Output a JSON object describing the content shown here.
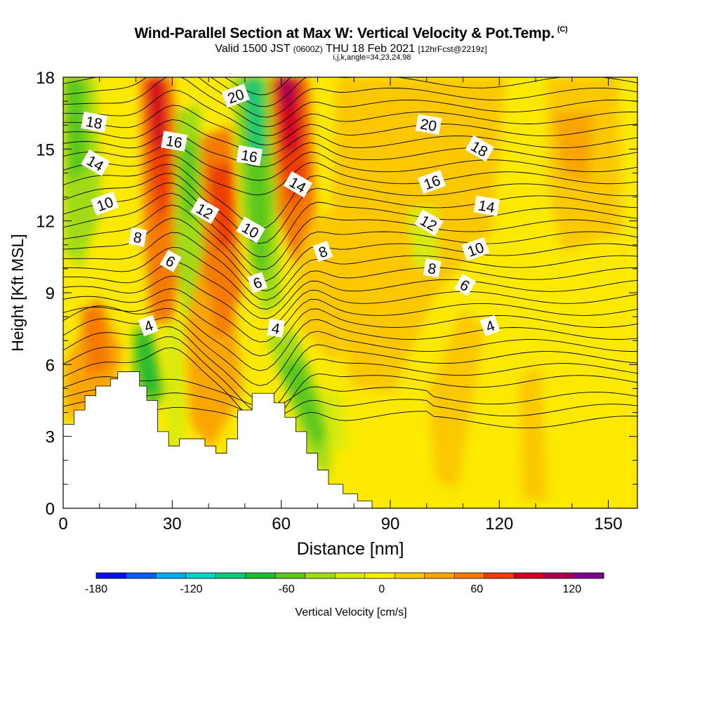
{
  "header": {
    "title": "Wind-Parallel Section at Max W: Vertical Velocity & Pot.Temp.",
    "copyright": "(C)",
    "valid_main": "Valid 1500 JST",
    "valid_utc": "(0600Z)",
    "valid_date": "THU 18 Feb 2021",
    "forecast": "[12hrFcst@2219z]",
    "ijk": "i,j,k,angle=34,23,24,98"
  },
  "chart_data": {
    "type": "heatmap",
    "xlabel": "Distance [nm]",
    "ylabel": "Height [Kft MSL]",
    "xlim": [
      0,
      158
    ],
    "ylim": [
      0,
      18
    ],
    "x_ticks": [
      0,
      30,
      60,
      90,
      120,
      150
    ],
    "y_ticks": [
      0,
      3,
      6,
      9,
      12,
      15,
      18
    ],
    "colorbar": {
      "label": "Vertical Velocity [cm/s]",
      "ticks": [
        -180,
        -120,
        -60,
        0,
        60,
        120
      ],
      "levels": [
        -180,
        -160,
        -140,
        -120,
        -100,
        -80,
        -60,
        -40,
        -20,
        0,
        20,
        40,
        60,
        80,
        100,
        120,
        140
      ],
      "colors": [
        "#0a10e6",
        "#0a5ef5",
        "#00aaf5",
        "#00d2c8",
        "#10c878",
        "#1eba32",
        "#5ac81e",
        "#a0dc14",
        "#d7eb0a",
        "#fbe900",
        "#fbc800",
        "#f9a600",
        "#f57a00",
        "#ee3c00",
        "#d10020",
        "#aa0050",
        "#7a0090"
      ]
    },
    "theta_contours": {
      "labels": [
        "4",
        "6",
        "8",
        "10",
        "12",
        "14",
        "16",
        "18",
        "20"
      ],
      "label_marks": [
        {
          "text": "18",
          "x": 8.5,
          "y": 16.1
        },
        {
          "text": "14",
          "x": 8.8,
          "y": 14.4
        },
        {
          "text": "10",
          "x": 11.5,
          "y": 12.7
        },
        {
          "text": "8",
          "x": 20.5,
          "y": 11.3
        },
        {
          "text": "6",
          "x": 29.5,
          "y": 10.3
        },
        {
          "text": "4",
          "x": 23.5,
          "y": 7.6
        },
        {
          "text": "16",
          "x": 30.5,
          "y": 15.3
        },
        {
          "text": "12",
          "x": 38.9,
          "y": 12.4
        },
        {
          "text": "20",
          "x": 47.5,
          "y": 17.2
        },
        {
          "text": "16",
          "x": 51.2,
          "y": 14.7
        },
        {
          "text": "10",
          "x": 51.5,
          "y": 11.6
        },
        {
          "text": "6",
          "x": 53.5,
          "y": 9.4
        },
        {
          "text": "4",
          "x": 58.5,
          "y": 7.5
        },
        {
          "text": "14",
          "x": 64.5,
          "y": 13.5
        },
        {
          "text": "8",
          "x": 71.5,
          "y": 10.7
        },
        {
          "text": "20",
          "x": 100.5,
          "y": 16.0
        },
        {
          "text": "18",
          "x": 114.5,
          "y": 15.0
        },
        {
          "text": "16",
          "x": 101.5,
          "y": 13.6
        },
        {
          "text": "14",
          "x": 116.5,
          "y": 12.6
        },
        {
          "text": "12",
          "x": 100.5,
          "y": 11.9
        },
        {
          "text": "10",
          "x": 113.5,
          "y": 10.8
        },
        {
          "text": "8",
          "x": 101.5,
          "y": 10.0
        },
        {
          "text": "6",
          "x": 110.5,
          "y": 9.3
        },
        {
          "text": "4",
          "x": 117.5,
          "y": 7.6
        }
      ]
    },
    "terrain": [
      [
        0,
        3.5
      ],
      [
        3,
        3.5
      ],
      [
        3,
        4.1
      ],
      [
        6,
        4.1
      ],
      [
        6,
        4.7
      ],
      [
        9,
        4.7
      ],
      [
        9,
        5.1
      ],
      [
        13,
        5.1
      ],
      [
        13,
        5.4
      ],
      [
        15,
        5.4
      ],
      [
        15,
        5.7
      ],
      [
        21,
        5.7
      ],
      [
        21,
        5.1
      ],
      [
        23,
        5.1
      ],
      [
        23,
        4.5
      ],
      [
        26,
        4.5
      ],
      [
        26,
        3.2
      ],
      [
        29,
        3.2
      ],
      [
        29,
        2.6
      ],
      [
        32,
        2.6
      ],
      [
        32,
        2.9
      ],
      [
        39,
        2.9
      ],
      [
        39,
        2.6
      ],
      [
        42,
        2.6
      ],
      [
        42,
        2.3
      ],
      [
        45,
        2.3
      ],
      [
        45,
        2.9
      ],
      [
        48,
        2.9
      ],
      [
        48,
        4.1
      ],
      [
        52,
        4.1
      ],
      [
        52,
        4.8
      ],
      [
        58,
        4.8
      ],
      [
        58,
        4.4
      ],
      [
        61,
        4.4
      ],
      [
        61,
        3.8
      ],
      [
        64,
        3.8
      ],
      [
        64,
        3.2
      ],
      [
        67,
        3.2
      ],
      [
        67,
        2.3
      ],
      [
        70,
        2.3
      ],
      [
        70,
        1.6
      ],
      [
        73,
        1.6
      ],
      [
        73,
        1.0
      ],
      [
        77,
        1.0
      ],
      [
        77,
        0.6
      ],
      [
        81,
        0.6
      ],
      [
        81,
        0.3
      ],
      [
        85,
        0.3
      ],
      [
        85,
        0.0
      ]
    ]
  }
}
